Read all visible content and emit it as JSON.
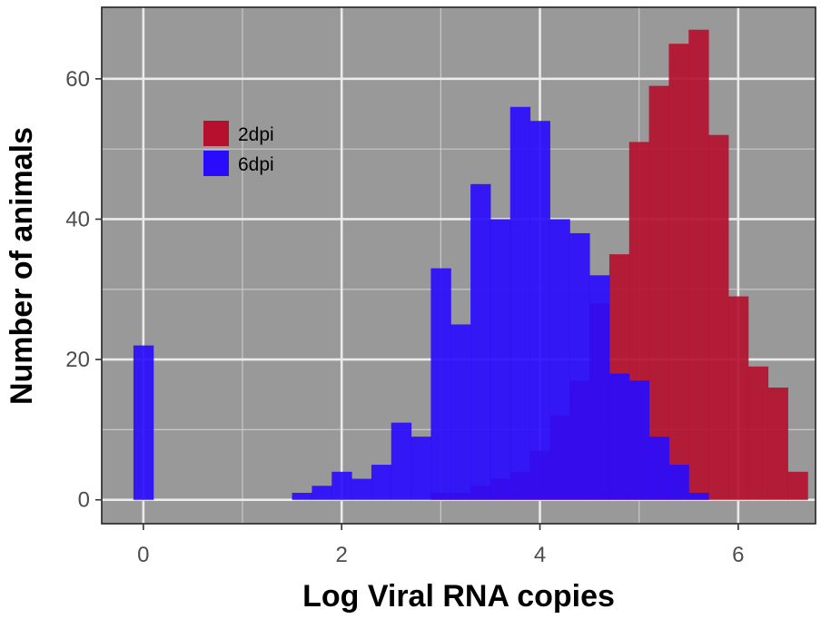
{
  "chart_data": {
    "type": "histogram",
    "xlabel": "Log Viral RNA copies",
    "ylabel": "Number of animals",
    "xlim": [
      -0.42,
      6.78
    ],
    "ylim": [
      -3.4,
      70.2
    ],
    "x_ticks": [
      0,
      2,
      4,
      6
    ],
    "y_ticks": [
      0,
      20,
      40,
      60
    ],
    "bin_width": 0.2,
    "grid": true,
    "legend_position": "top-left",
    "panel_color": "#999999",
    "grid_color": "#ebebeb",
    "series": [
      {
        "name": "2dpi",
        "color": "#b5112e",
        "bins": [
          {
            "x0": 2.9,
            "x1": 3.1,
            "count": 1
          },
          {
            "x0": 3.1,
            "x1": 3.3,
            "count": 1
          },
          {
            "x0": 3.3,
            "x1": 3.5,
            "count": 2
          },
          {
            "x0": 3.5,
            "x1": 3.7,
            "count": 3
          },
          {
            "x0": 3.7,
            "x1": 3.9,
            "count": 4
          },
          {
            "x0": 3.9,
            "x1": 4.1,
            "count": 7
          },
          {
            "x0": 4.1,
            "x1": 4.3,
            "count": 12
          },
          {
            "x0": 4.3,
            "x1": 4.5,
            "count": 17
          },
          {
            "x0": 4.5,
            "x1": 4.7,
            "count": 28
          },
          {
            "x0": 4.7,
            "x1": 4.9,
            "count": 35
          },
          {
            "x0": 4.9,
            "x1": 5.1,
            "count": 51
          },
          {
            "x0": 5.1,
            "x1": 5.3,
            "count": 59
          },
          {
            "x0": 5.3,
            "x1": 5.5,
            "count": 65
          },
          {
            "x0": 5.5,
            "x1": 5.7,
            "count": 67
          },
          {
            "x0": 5.7,
            "x1": 5.9,
            "count": 52
          },
          {
            "x0": 5.9,
            "x1": 6.1,
            "count": 29
          },
          {
            "x0": 6.1,
            "x1": 6.3,
            "count": 19
          },
          {
            "x0": 6.3,
            "x1": 6.5,
            "count": 16
          },
          {
            "x0": 6.5,
            "x1": 6.7,
            "count": 4
          }
        ]
      },
      {
        "name": "6dpi",
        "color": "#2a0cfc",
        "bins": [
          {
            "x0": -0.1,
            "x1": 0.1,
            "count": 22
          },
          {
            "x0": 1.5,
            "x1": 1.7,
            "count": 1
          },
          {
            "x0": 1.7,
            "x1": 1.9,
            "count": 2
          },
          {
            "x0": 1.9,
            "x1": 2.1,
            "count": 4
          },
          {
            "x0": 2.1,
            "x1": 2.3,
            "count": 3
          },
          {
            "x0": 2.3,
            "x1": 2.5,
            "count": 5
          },
          {
            "x0": 2.5,
            "x1": 2.7,
            "count": 11
          },
          {
            "x0": 2.7,
            "x1": 2.9,
            "count": 9
          },
          {
            "x0": 2.9,
            "x1": 3.1,
            "count": 33
          },
          {
            "x0": 3.1,
            "x1": 3.3,
            "count": 25
          },
          {
            "x0": 3.3,
            "x1": 3.5,
            "count": 45
          },
          {
            "x0": 3.5,
            "x1": 3.7,
            "count": 40
          },
          {
            "x0": 3.7,
            "x1": 3.9,
            "count": 56
          },
          {
            "x0": 3.9,
            "x1": 4.1,
            "count": 54
          },
          {
            "x0": 4.1,
            "x1": 4.3,
            "count": 40
          },
          {
            "x0": 4.3,
            "x1": 4.5,
            "count": 38
          },
          {
            "x0": 4.5,
            "x1": 4.7,
            "count": 32
          },
          {
            "x0": 4.7,
            "x1": 4.9,
            "count": 18
          },
          {
            "x0": 4.9,
            "x1": 5.1,
            "count": 17
          },
          {
            "x0": 5.1,
            "x1": 5.3,
            "count": 9
          },
          {
            "x0": 5.3,
            "x1": 5.5,
            "count": 5
          },
          {
            "x0": 5.5,
            "x1": 5.7,
            "count": 1
          }
        ]
      }
    ]
  }
}
